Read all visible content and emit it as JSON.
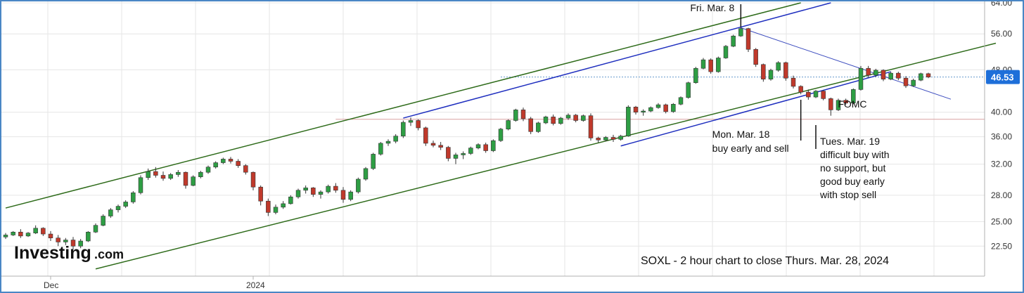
{
  "chart_data": {
    "type": "candlestick",
    "title": "SOXL - 2 hour chart to close Thurs. Mar. 28, 2024",
    "watermark": {
      "brand": "Investing",
      "suffix": ".com"
    },
    "y_ticks": [
      "64.00",
      "56.00",
      "48.00",
      "40.00",
      "36.00",
      "32.00",
      "28.00",
      "25.00",
      "22.50"
    ],
    "y_tick_values": [
      64,
      56,
      48,
      40,
      36,
      32,
      28,
      25,
      22.5
    ],
    "y_scale": "log",
    "ylim": [
      20.2,
      64
    ],
    "x_labels": [
      {
        "label": "Dec",
        "bar": 6
      },
      {
        "label": "2024",
        "bar": 33
      }
    ],
    "current_price": {
      "label": "46.53",
      "value": 46.53,
      "color": "#1e6fd9"
    },
    "horizontal_lines": [
      {
        "value": 46.53,
        "from_bar": 66,
        "style": "dotted",
        "color": "#6699cc"
      },
      {
        "value": 38.8,
        "from_bar": 44,
        "style": "solid",
        "color": "#d9a0a0"
      }
    ],
    "trendlines": [
      {
        "name": "upper-channel-green",
        "color": "#2e6b1a",
        "from": [
          0,
          26.5
        ],
        "to": [
          106,
          64.0
        ]
      },
      {
        "name": "lower-channel-green",
        "color": "#2e6b1a",
        "from": [
          12,
          20.4
        ],
        "to": [
          132,
          53.8
        ]
      },
      {
        "name": "upper-channel-blue",
        "color": "#1f2fbf",
        "from": [
          53,
          39.0
        ],
        "to": [
          110,
          64.0
        ]
      },
      {
        "name": "lower-channel-blue",
        "color": "#1f2fbf",
        "from": [
          82,
          34.6
        ],
        "to": [
          118,
          47.6
        ]
      },
      {
        "name": "downtrend-line",
        "color": "#3d4dbf",
        "from": [
          98,
          57.5
        ],
        "to": [
          126,
          42.3
        ]
      }
    ],
    "annotations": [
      {
        "id": "fri-mar-8",
        "text": [
          "Fri. Mar. 8"
        ],
        "bar": 98,
        "price": 58.6
      },
      {
        "id": "mon-mar-18",
        "text": [
          "Mon. Mar. 18",
          "buy early and sell"
        ],
        "bar": 106,
        "price": 41.0
      },
      {
        "id": "tues-mar-19",
        "text": [
          "Tues. Mar. 19",
          "difficult buy with",
          "no support, but",
          "good buy early",
          "with stop sell"
        ],
        "bar": 108,
        "price": 39.2
      },
      {
        "id": "fomc",
        "text": [
          "FOMC"
        ],
        "bar": 110,
        "price": 41.2
      }
    ],
    "colors": {
      "up": "#2e9e44",
      "down": "#c0392b",
      "grid": "#e6e6e6"
    },
    "bars": [
      [
        23.4,
        23.8,
        23.2,
        23.6
      ],
      [
        23.6,
        24.0,
        23.5,
        23.9
      ],
      [
        23.9,
        24.2,
        23.3,
        23.5
      ],
      [
        23.5,
        23.9,
        23.4,
        23.8
      ],
      [
        23.8,
        24.6,
        23.7,
        24.3
      ],
      [
        24.3,
        24.4,
        23.5,
        23.7
      ],
      [
        23.7,
        24.0,
        23.0,
        23.3
      ],
      [
        23.3,
        23.6,
        22.5,
        22.9
      ],
      [
        22.9,
        23.3,
        22.6,
        23.1
      ],
      [
        23.1,
        23.4,
        22.2,
        22.5
      ],
      [
        22.5,
        23.2,
        22.3,
        23.0
      ],
      [
        23.0,
        24.0,
        22.9,
        23.9
      ],
      [
        23.9,
        24.8,
        23.8,
        24.6
      ],
      [
        24.6,
        25.8,
        24.5,
        25.6
      ],
      [
        25.6,
        26.5,
        25.4,
        26.3
      ],
      [
        26.3,
        26.9,
        26.0,
        26.7
      ],
      [
        26.7,
        27.4,
        26.5,
        27.2
      ],
      [
        27.2,
        28.5,
        27.0,
        28.3
      ],
      [
        28.3,
        30.5,
        28.1,
        30.2
      ],
      [
        30.2,
        31.4,
        29.9,
        31.0
      ],
      [
        31.0,
        31.6,
        30.2,
        30.5
      ],
      [
        30.5,
        31.0,
        29.8,
        30.1
      ],
      [
        30.1,
        30.8,
        29.9,
        30.6
      ],
      [
        30.6,
        31.2,
        30.3,
        30.9
      ],
      [
        30.9,
        31.0,
        28.8,
        29.2
      ],
      [
        29.2,
        30.5,
        29.1,
        30.3
      ],
      [
        30.3,
        31.1,
        30.1,
        30.9
      ],
      [
        30.9,
        31.8,
        30.7,
        31.6
      ],
      [
        31.6,
        32.4,
        31.4,
        32.2
      ],
      [
        32.2,
        32.9,
        32.0,
        32.7
      ],
      [
        32.7,
        33.0,
        32.1,
        32.4
      ],
      [
        32.4,
        32.7,
        31.5,
        31.8
      ],
      [
        31.8,
        32.0,
        30.6,
        30.9
      ],
      [
        30.9,
        31.0,
        28.6,
        29.0
      ],
      [
        29.0,
        29.2,
        26.8,
        27.3
      ],
      [
        27.3,
        27.6,
        25.6,
        26.0
      ],
      [
        26.0,
        26.9,
        25.8,
        26.6
      ],
      [
        26.6,
        27.3,
        26.4,
        27.0
      ],
      [
        27.0,
        28.0,
        26.9,
        27.8
      ],
      [
        27.8,
        28.8,
        27.6,
        28.6
      ],
      [
        28.6,
        29.2,
        28.2,
        28.9
      ],
      [
        28.9,
        29.0,
        27.8,
        28.1
      ],
      [
        28.1,
        28.6,
        27.6,
        28.4
      ],
      [
        28.4,
        29.3,
        28.2,
        29.1
      ],
      [
        29.1,
        29.5,
        28.3,
        28.6
      ],
      [
        28.6,
        29.0,
        27.1,
        27.5
      ],
      [
        27.5,
        28.6,
        27.3,
        28.4
      ],
      [
        28.4,
        30.2,
        28.2,
        30.0
      ],
      [
        30.0,
        31.6,
        29.8,
        31.4
      ],
      [
        31.4,
        33.6,
        31.2,
        33.4
      ],
      [
        33.4,
        35.2,
        33.2,
        35.0
      ],
      [
        35.0,
        35.6,
        34.6,
        35.3
      ],
      [
        35.3,
        36.4,
        35.0,
        36.1
      ],
      [
        36.1,
        38.6,
        35.8,
        38.3
      ],
      [
        38.3,
        39.1,
        37.7,
        38.6
      ],
      [
        38.6,
        38.8,
        37.0,
        37.4
      ],
      [
        37.4,
        37.6,
        34.6,
        35.0
      ],
      [
        35.0,
        35.4,
        34.4,
        34.7
      ],
      [
        34.7,
        35.2,
        34.0,
        34.4
      ],
      [
        34.4,
        34.6,
        32.4,
        32.8
      ],
      [
        32.8,
        33.6,
        32.0,
        33.3
      ],
      [
        33.3,
        33.8,
        32.7,
        33.5
      ],
      [
        33.5,
        34.5,
        33.3,
        34.3
      ],
      [
        34.3,
        35.0,
        34.1,
        34.8
      ],
      [
        34.8,
        35.1,
        33.6,
        33.9
      ],
      [
        33.9,
        35.6,
        33.7,
        35.4
      ],
      [
        35.4,
        37.4,
        35.2,
        37.2
      ],
      [
        37.2,
        38.8,
        37.0,
        38.6
      ],
      [
        38.6,
        40.6,
        38.4,
        40.4
      ],
      [
        40.4,
        40.8,
        38.5,
        38.9
      ],
      [
        38.9,
        39.2,
        36.4,
        36.8
      ],
      [
        36.8,
        38.4,
        36.6,
        38.2
      ],
      [
        38.2,
        39.4,
        38.0,
        39.2
      ],
      [
        39.2,
        39.6,
        37.8,
        38.1
      ],
      [
        38.1,
        39.2,
        37.9,
        39.0
      ],
      [
        39.0,
        39.8,
        38.7,
        39.5
      ],
      [
        39.5,
        39.7,
        38.3,
        38.6
      ],
      [
        38.6,
        39.6,
        38.4,
        39.4
      ],
      [
        39.4,
        39.8,
        35.4,
        35.8
      ],
      [
        35.8,
        36.0,
        35.1,
        35.5
      ],
      [
        35.5,
        36.1,
        35.3,
        35.9
      ],
      [
        35.9,
        36.3,
        35.2,
        35.6
      ],
      [
        35.6,
        36.3,
        35.4,
        36.1
      ],
      [
        36.1,
        41.2,
        36.0,
        40.9
      ],
      [
        40.9,
        41.1,
        39.6,
        40.0
      ],
      [
        40.0,
        40.5,
        39.4,
        40.2
      ],
      [
        40.2,
        41.0,
        40.0,
        40.8
      ],
      [
        40.8,
        41.6,
        40.6,
        41.3
      ],
      [
        41.3,
        41.5,
        39.8,
        40.1
      ],
      [
        40.1,
        41.6,
        39.9,
        41.4
      ],
      [
        41.4,
        42.8,
        41.2,
        42.6
      ],
      [
        42.6,
        45.6,
        42.4,
        45.4
      ],
      [
        45.4,
        48.6,
        45.2,
        48.3
      ],
      [
        48.3,
        50.5,
        48.1,
        50.1
      ],
      [
        50.1,
        50.4,
        47.2,
        47.6
      ],
      [
        47.6,
        50.8,
        47.4,
        50.5
      ],
      [
        50.5,
        53.4,
        50.3,
        53.1
      ],
      [
        53.1,
        55.8,
        52.9,
        55.5
      ],
      [
        55.5,
        57.6,
        55.3,
        57.3
      ],
      [
        57.3,
        57.5,
        51.8,
        52.4
      ],
      [
        52.4,
        52.7,
        48.6,
        49.1
      ],
      [
        49.1,
        49.3,
        45.6,
        46.1
      ],
      [
        46.1,
        48.2,
        45.8,
        47.9
      ],
      [
        47.9,
        49.8,
        47.6,
        49.5
      ],
      [
        49.5,
        49.7,
        45.8,
        46.3
      ],
      [
        46.3,
        46.8,
        44.3,
        44.7
      ],
      [
        44.7,
        44.9,
        43.2,
        43.6
      ],
      [
        43.6,
        44.1,
        42.2,
        42.7
      ],
      [
        42.7,
        44.0,
        42.5,
        43.8
      ],
      [
        43.8,
        44.0,
        42.1,
        42.4
      ],
      [
        42.4,
        42.6,
        39.4,
        40.4
      ],
      [
        40.4,
        42.4,
        40.2,
        42.1
      ],
      [
        42.1,
        42.4,
        41.3,
        41.6
      ],
      [
        41.6,
        44.3,
        41.4,
        44.1
      ],
      [
        44.1,
        48.8,
        43.9,
        48.3
      ],
      [
        48.3,
        48.8,
        46.4,
        46.9
      ],
      [
        46.9,
        48.2,
        46.6,
        47.9
      ],
      [
        47.9,
        48.1,
        45.7,
        46.1
      ],
      [
        46.1,
        47.6,
        45.9,
        47.3
      ],
      [
        47.3,
        47.6,
        45.9,
        46.3
      ],
      [
        46.3,
        46.7,
        44.4,
        44.8
      ],
      [
        44.8,
        46.2,
        44.6,
        45.9
      ],
      [
        45.9,
        47.4,
        45.7,
        47.2
      ],
      [
        47.2,
        47.4,
        46.3,
        46.53
      ]
    ]
  }
}
